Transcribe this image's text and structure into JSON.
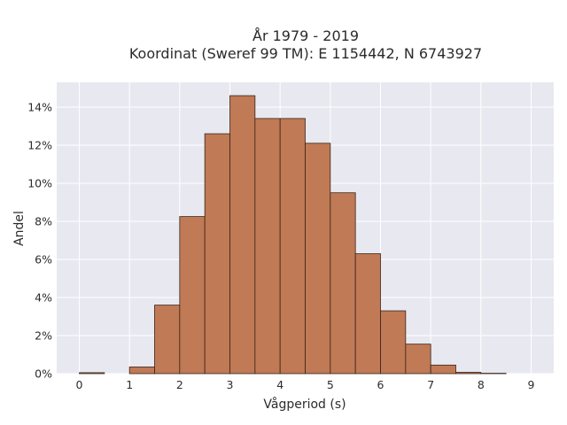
{
  "chart_data": {
    "type": "bar",
    "title": [
      "År 1979 - 2019",
      "Koordinat (Sweref 99 TM): E 1154442, N 6743927"
    ],
    "xlabel": "Vågperiod (s)",
    "ylabel": "Andel",
    "bin_width": 0.5,
    "bins": [
      {
        "start": 0.0,
        "value": 0.05
      },
      {
        "start": 0.5,
        "value": 0.0
      },
      {
        "start": 1.0,
        "value": 0.35
      },
      {
        "start": 1.5,
        "value": 3.6
      },
      {
        "start": 2.0,
        "value": 8.25
      },
      {
        "start": 2.5,
        "value": 12.6
      },
      {
        "start": 3.0,
        "value": 14.6
      },
      {
        "start": 3.5,
        "value": 13.4
      },
      {
        "start": 4.0,
        "value": 13.4
      },
      {
        "start": 4.5,
        "value": 12.1
      },
      {
        "start": 5.0,
        "value": 9.5
      },
      {
        "start": 5.5,
        "value": 6.3
      },
      {
        "start": 6.0,
        "value": 3.3
      },
      {
        "start": 6.5,
        "value": 1.55
      },
      {
        "start": 7.0,
        "value": 0.45
      },
      {
        "start": 7.5,
        "value": 0.07
      },
      {
        "start": 8.0,
        "value": 0.02
      }
    ],
    "xlim": [
      -0.45,
      9.45
    ],
    "ylim": [
      0,
      15.3
    ],
    "x_ticks": [
      0,
      1,
      2,
      3,
      4,
      5,
      6,
      7,
      8,
      9
    ],
    "x_tick_labels": [
      "0",
      "1",
      "2",
      "3",
      "4",
      "5",
      "6",
      "7",
      "8",
      "9"
    ],
    "y_ticks": [
      0,
      2,
      4,
      6,
      8,
      10,
      12,
      14
    ],
    "y_tick_labels": [
      "0%",
      "2%",
      "4%",
      "6%",
      "8%",
      "10%",
      "12%",
      "14%"
    ],
    "grid": true,
    "colors": {
      "bar_fill": "#c07a55",
      "bar_edge": "#3a2418",
      "plot_bg": "#e8e8f0",
      "grid": "#ffffff"
    }
  }
}
